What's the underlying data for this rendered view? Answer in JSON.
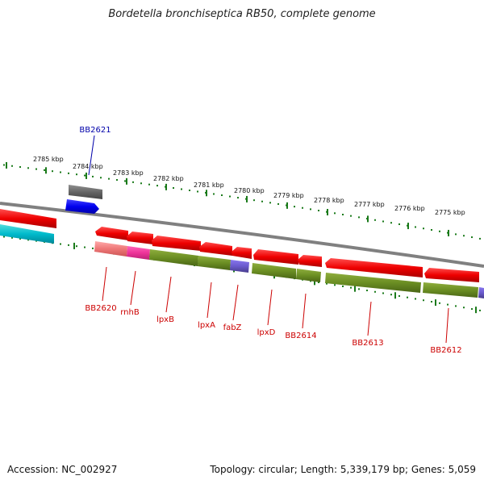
{
  "title": "Bordetella bronchiseptica RB50, complete genome",
  "footer": {
    "accession": "Accession: NC_002927",
    "summary": "Topology: circular; Length: 5,339,179 bp; Genes: 5,059"
  },
  "scale_ticks": [
    {
      "label": "2785 kbp"
    },
    {
      "label": "2784 kbp"
    },
    {
      "label": "2783 kbp"
    },
    {
      "label": "2782 kbp"
    },
    {
      "label": "2781 kbp"
    },
    {
      "label": "2780 kbp"
    },
    {
      "label": "2779 kbp"
    },
    {
      "label": "2778 kbp"
    },
    {
      "label": "2777 kbp"
    },
    {
      "label": "2776 kbp"
    },
    {
      "label": "2775 kbp"
    }
  ],
  "gene_labels": [
    {
      "name": "BB2621",
      "color": "#0000aa"
    },
    {
      "name": "BB2620",
      "color": "#cc0000"
    },
    {
      "name": "rnhB",
      "color": "#cc0000"
    },
    {
      "name": "lpxB",
      "color": "#cc0000"
    },
    {
      "name": "lpxA",
      "color": "#cc0000"
    },
    {
      "name": "fabZ",
      "color": "#cc0000"
    },
    {
      "name": "lpxD",
      "color": "#cc0000"
    },
    {
      "name": "BB2614",
      "color": "#cc0000"
    },
    {
      "name": "BB2613",
      "color": "#cc0000"
    },
    {
      "name": "BB2612",
      "color": "#cc0000"
    }
  ],
  "colors": {
    "red": "#ee0000",
    "green": "#6b8e23",
    "blue": "#0000ee",
    "gray": "#666666",
    "cyan": "#00bbcc",
    "pink": "#ee3399",
    "salmon": "#ee7777",
    "purple": "#6a5acd",
    "tick": "#1a7a1a",
    "backbone": "#808080"
  }
}
